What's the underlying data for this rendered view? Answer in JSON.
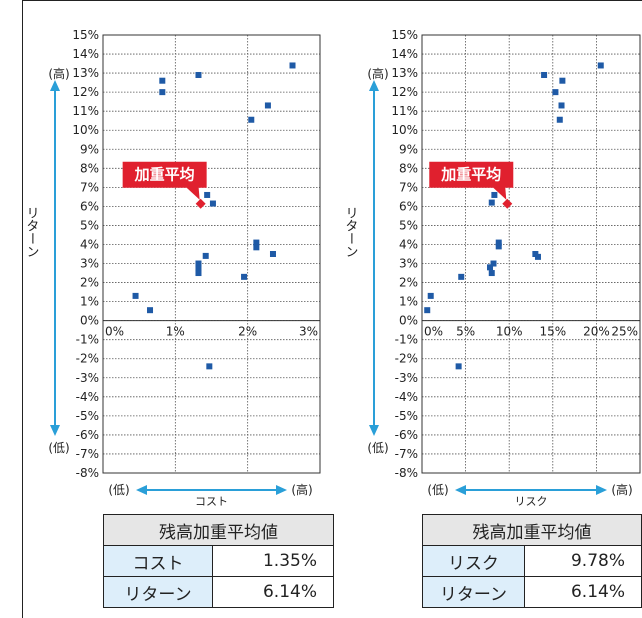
{
  "colors": {
    "point": "#1f5aa6",
    "avg": "#e0202e",
    "arrow": "#2a9fd8",
    "grid": "#555555"
  },
  "charts": [
    {
      "x_axis_word": "コスト",
      "x_low": "(低)",
      "x_high": "(高)",
      "y_axis_word": "リターン",
      "y_high": "(高)",
      "y_low": "(低)",
      "avg_label": "加重平均",
      "table": {
        "title": "残高加重平均値",
        "rows": [
          {
            "label": "コスト",
            "value": "1.35%"
          },
          {
            "label": "リターン",
            "value": "6.14%"
          }
        ]
      }
    },
    {
      "x_axis_word": "リスク",
      "x_low": "(低)",
      "x_high": "(高)",
      "y_axis_word": "リターン",
      "y_high": "(高)",
      "y_low": "(低)",
      "avg_label": "加重平均",
      "table": {
        "title": "残高加重平均値",
        "rows": [
          {
            "label": "リスク",
            "value": "9.78%"
          },
          {
            "label": "リターン",
            "value": "6.14%"
          }
        ]
      }
    }
  ],
  "chart_data": [
    {
      "type": "scatter",
      "xlim": [
        0,
        3
      ],
      "ylim": [
        -8,
        15
      ],
      "x_ticks": [
        "0%",
        "1%",
        "2%",
        "3%"
      ],
      "y_ticks": [
        "15%",
        "14%",
        "13%",
        "12%",
        "11%",
        "10%",
        "9%",
        "8%",
        "7%",
        "6%",
        "5%",
        "4%",
        "3%",
        "2%",
        "1%",
        "0%",
        "-1%",
        "-2%",
        "-3%",
        "-4%",
        "-5%",
        "-6%",
        "-7%",
        "-8%"
      ],
      "points": [
        [
          0.45,
          1.3
        ],
        [
          0.65,
          0.55
        ],
        [
          0.82,
          12.6
        ],
        [
          0.82,
          12.0
        ],
        [
          1.32,
          12.9
        ],
        [
          1.44,
          6.6
        ],
        [
          1.52,
          6.15
        ],
        [
          1.32,
          3.0
        ],
        [
          1.32,
          2.75
        ],
        [
          1.32,
          2.5
        ],
        [
          1.42,
          3.4
        ],
        [
          1.47,
          -2.4
        ],
        [
          1.95,
          2.3
        ],
        [
          2.05,
          10.55
        ],
        [
          2.12,
          4.1
        ],
        [
          2.12,
          3.85
        ],
        [
          2.28,
          11.3
        ],
        [
          2.35,
          3.5
        ],
        [
          2.62,
          13.4
        ]
      ],
      "average": [
        1.35,
        6.14
      ]
    },
    {
      "type": "scatter",
      "xlim": [
        0,
        25
      ],
      "ylim": [
        -8,
        15
      ],
      "x_ticks": [
        "0%",
        "5%",
        "10%",
        "15%",
        "20%",
        "25%"
      ],
      "y_ticks": [
        "15%",
        "14%",
        "13%",
        "12%",
        "11%",
        "10%",
        "9%",
        "8%",
        "7%",
        "6%",
        "5%",
        "4%",
        "3%",
        "2%",
        "1%",
        "0%",
        "-1%",
        "-2%",
        "-3%",
        "-4%",
        "-5%",
        "-6%",
        "-7%",
        "-8%"
      ],
      "points": [
        [
          1.0,
          1.3
        ],
        [
          0.6,
          0.55
        ],
        [
          4.5,
          2.3
        ],
        [
          4.2,
          -2.4
        ],
        [
          7.8,
          2.8
        ],
        [
          8.0,
          2.5
        ],
        [
          8.2,
          3.0
        ],
        [
          8.0,
          6.2
        ],
        [
          8.3,
          6.6
        ],
        [
          8.8,
          3.9
        ],
        [
          8.8,
          4.1
        ],
        [
          13.0,
          3.5
        ],
        [
          13.3,
          3.35
        ],
        [
          14.0,
          12.9
        ],
        [
          15.3,
          12.0
        ],
        [
          15.8,
          10.55
        ],
        [
          16.0,
          11.3
        ],
        [
          16.1,
          12.6
        ],
        [
          20.5,
          13.4
        ]
      ],
      "average": [
        9.78,
        6.14
      ]
    }
  ]
}
